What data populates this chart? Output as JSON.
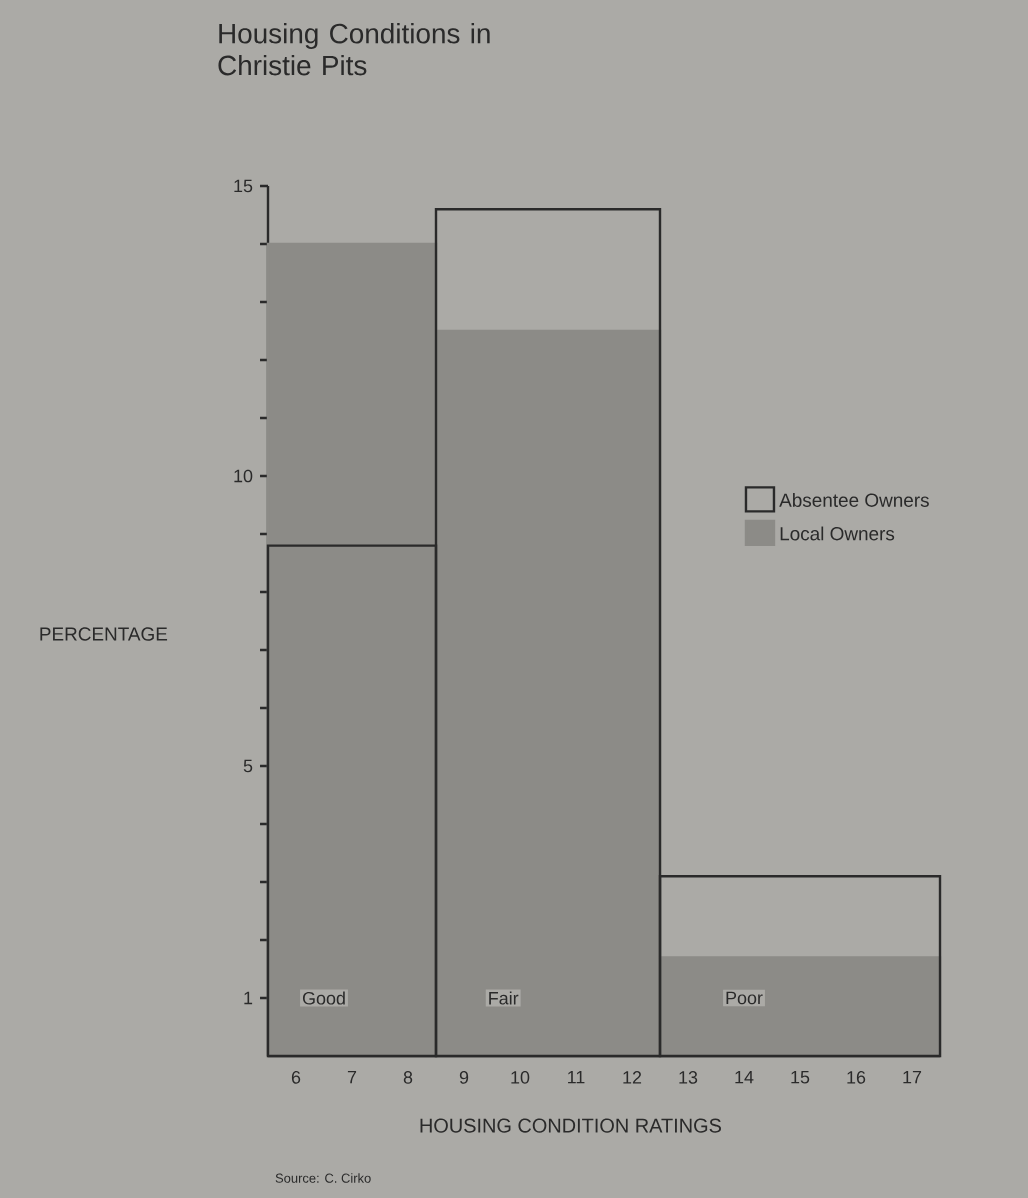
{
  "chart_data": {
    "type": "histogram",
    "title": "Housing Conditions in Christie Pits",
    "xlabel": "HOUSING CONDITION RATINGS",
    "ylabel": "PERCENTAGE",
    "bins": [
      5.5,
      8.5,
      12.5,
      17.5
    ],
    "series": [
      {
        "name": "Absentee Owners",
        "color": "#2a2a2a",
        "values": [
          8.8,
          14.6,
          3.1
        ]
      },
      {
        "name": "Local Owners",
        "color": "#8c8b87",
        "values": [
          14,
          12.5,
          1.7
        ]
      }
    ],
    "xlim": [
      5.5,
      17.5
    ],
    "xticks": [
      6,
      7,
      8,
      9,
      10,
      11,
      12,
      13,
      14,
      15,
      16,
      17
    ],
    "ylim": [
      0,
      15
    ],
    "yticks": [
      1,
      {
        "value": 2,
        "label": null
      },
      {
        "value": 3,
        "label": null
      },
      {
        "value": 4,
        "label": null
      },
      5,
      {
        "value": 6,
        "label": null
      },
      {
        "value": 7,
        "label": null
      },
      {
        "value": 8,
        "label": null
      },
      {
        "value": 9,
        "label": null
      },
      10,
      {
        "value": 11,
        "label": null
      },
      {
        "value": 12,
        "label": null
      },
      {
        "value": 13,
        "label": null
      },
      {
        "value": 14,
        "label": null
      },
      15
    ],
    "legend": "right",
    "annotations": [
      {
        "text": "Good",
        "x": 6.5,
        "y": 1
      },
      {
        "text": "Fair",
        "x": 9.7,
        "y": 1
      },
      {
        "text": "Poor",
        "x": 14,
        "y": 1
      },
      "Source: C. Cirko"
    ]
  }
}
